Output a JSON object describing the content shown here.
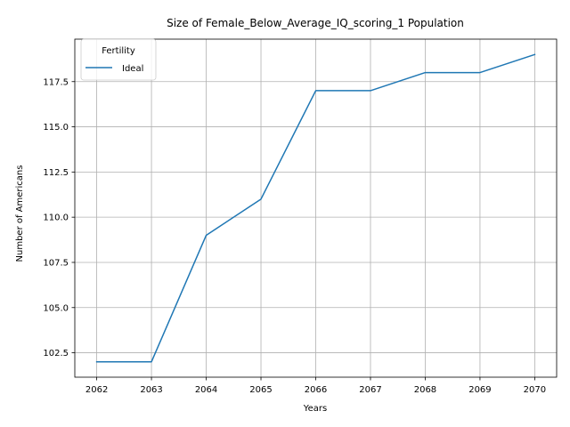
{
  "chart_data": {
    "type": "line",
    "title": "Size of Female_Below_Average_IQ_scoring_1 Population",
    "xlabel": "Years",
    "ylabel": "Number of Americans",
    "x": [
      2062,
      2063,
      2064,
      2065,
      2066,
      2067,
      2068,
      2069,
      2070
    ],
    "series": [
      {
        "name": "Ideal",
        "values": [
          102,
          102,
          109,
          111,
          117,
          117,
          118,
          118,
          119
        ],
        "color": "#1f77b4"
      }
    ],
    "xlim": [
      2061.6,
      2070.4
    ],
    "ylim": [
      101.15,
      119.85
    ],
    "xticks": [
      2062,
      2063,
      2064,
      2065,
      2066,
      2067,
      2068,
      2069,
      2070
    ],
    "xtick_labels": [
      "2062",
      "2063",
      "2064",
      "2065",
      "2066",
      "2067",
      "2068",
      "2069",
      "2070"
    ],
    "yticks": [
      102.5,
      105.0,
      107.5,
      110.0,
      112.5,
      115.0,
      117.5
    ],
    "ytick_labels": [
      "102.5",
      "105.0",
      "107.5",
      "110.0",
      "112.5",
      "115.0",
      "117.5"
    ],
    "grid": true,
    "legend": {
      "title": "Fertility",
      "placement": "top-left"
    }
  }
}
